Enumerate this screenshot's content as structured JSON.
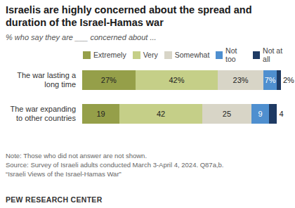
{
  "chart_data": {
    "type": "bar",
    "orientation": "horizontal",
    "stacked": true,
    "data_labels": true,
    "tick_labels": false,
    "title": "Israelis are highly concerned about the spread and duration of the Israel-Hamas war",
    "subtitle": "% who say they are ___ concerned about ...",
    "categories": [
      "The war lasting a long time",
      "The war expanding to other countries"
    ],
    "xlim": [
      0,
      101
    ],
    "series": [
      {
        "name": "Extremely",
        "color": "#959f49",
        "values": [
          27,
          19
        ],
        "value_labels": [
          "27%",
          "19"
        ]
      },
      {
        "name": "Very",
        "color": "#c5cf88",
        "values": [
          42,
          42
        ],
        "value_labels": [
          "42%",
          "42"
        ]
      },
      {
        "name": "Somewhat",
        "color": "#d8d5c7",
        "values": [
          23,
          25
        ],
        "value_labels": [
          "23%",
          "25"
        ]
      },
      {
        "name": "Not too",
        "color": "#4f8fcf",
        "values": [
          7,
          9
        ],
        "value_labels": [
          "7%",
          "9"
        ]
      },
      {
        "name": "Not at all",
        "color": "#1e3a63",
        "values": [
          2,
          4
        ],
        "value_labels": [
          "2%",
          "4"
        ]
      }
    ],
    "notes": [
      "Note: Those who did not answer are not shown.",
      "Source: Survey of Israeli adults conducted March 3-April 4, 2024. Q87a,b.",
      "“Israeli Views of the Israel-Hamas War”"
    ],
    "credit": "PEW RESEARCH CENTER"
  }
}
